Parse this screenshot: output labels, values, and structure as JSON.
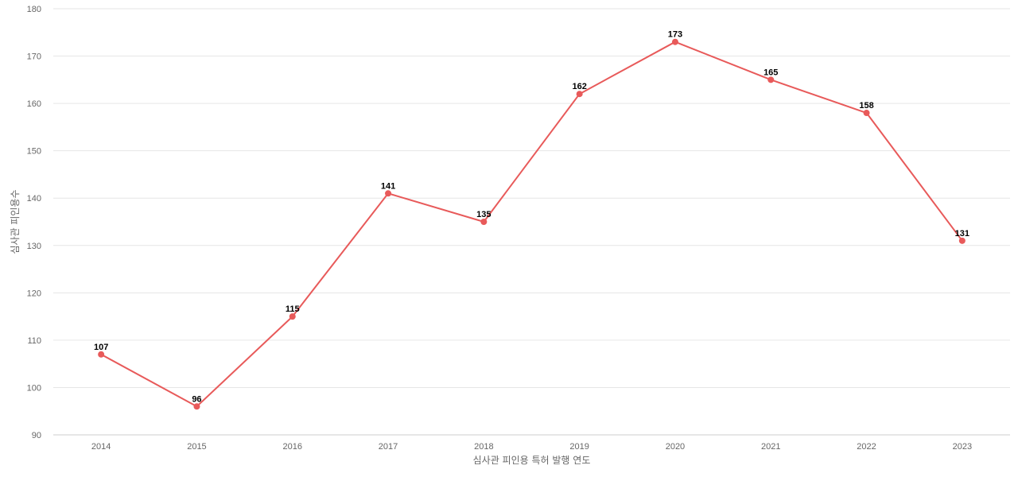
{
  "chart_data": {
    "type": "line",
    "title": "",
    "xlabel": "심사관 피인용 특허 발행 연도",
    "ylabel": "심사관 피인용수",
    "categories": [
      "2014",
      "2015",
      "2016",
      "2017",
      "2018",
      "2019",
      "2020",
      "2021",
      "2022",
      "2023"
    ],
    "series": [
      {
        "values": [
          107,
          96,
          115,
          141,
          135,
          162,
          173,
          165,
          158,
          131
        ]
      }
    ],
    "ylim": [
      90,
      180
    ],
    "yticks": [
      90,
      100,
      110,
      120,
      130,
      140,
      150,
      160,
      170,
      180
    ],
    "grid": true,
    "legend": "none",
    "data_labels": true,
    "colors": {
      "line": "#e85a5a",
      "grid": "#e6e6e6",
      "axis_text": "#666666"
    }
  }
}
